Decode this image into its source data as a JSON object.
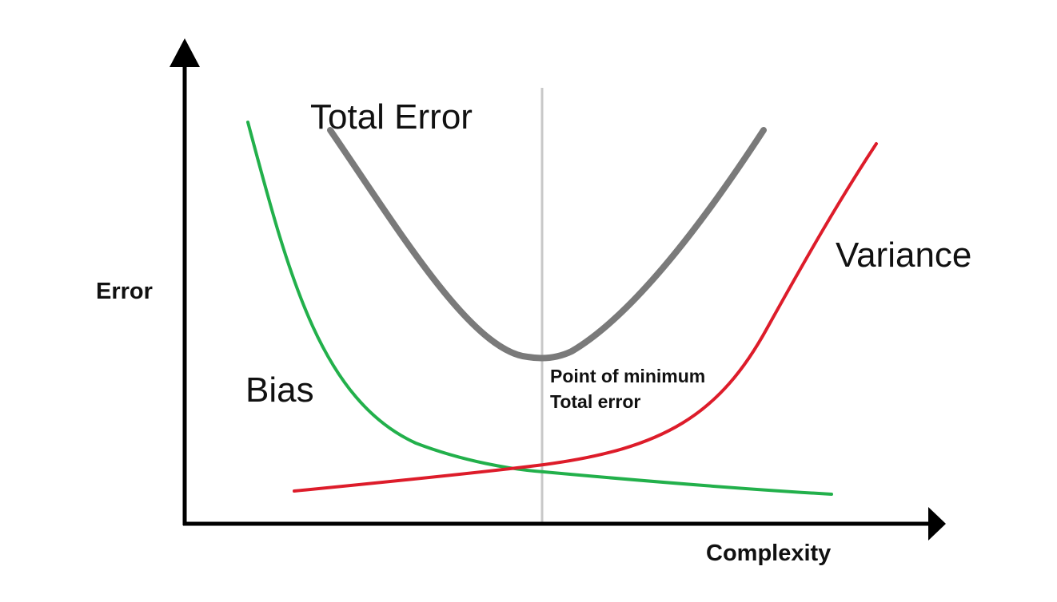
{
  "labels": {
    "total_error": "Total Error",
    "variance": "Variance",
    "bias": "Bias",
    "y_axis": "Error",
    "x_axis": "Complexity",
    "min_point_line1": "Point of minimum",
    "min_point_line2": "Total error"
  },
  "colors": {
    "axis": "#000000",
    "total_error": "#7a7a7a",
    "bias": "#22b04b",
    "variance": "#dd1c2a",
    "optimum_line": "#c8c8c8"
  },
  "icons": {
    "y_axis_arrow": "arrow-up-icon",
    "x_axis_arrow": "arrow-right-icon"
  }
}
